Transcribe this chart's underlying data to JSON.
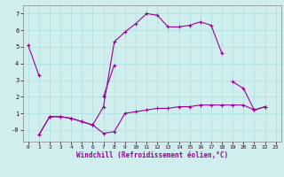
{
  "xlabel": "Windchill (Refroidissement éolien,°C)",
  "bg_color": "#d0eeee",
  "line_color": "#990099",
  "lines": [
    {
      "x": [
        0,
        1
      ],
      "y": [
        5.1,
        3.3
      ]
    },
    {
      "x": [
        1,
        2,
        3,
        4,
        5,
        6,
        7,
        8,
        9,
        10,
        11,
        12,
        13,
        14,
        15,
        16,
        17,
        18
      ],
      "y": [
        -0.3,
        0.8,
        0.8,
        0.7,
        0.5,
        0.3,
        1.4,
        5.3,
        5.9,
        6.4,
        7.0,
        6.9,
        6.2,
        6.2,
        6.3,
        6.5,
        6.3,
        4.6
      ]
    },
    {
      "x": [
        7,
        8
      ],
      "y": [
        2.0,
        3.9
      ]
    },
    {
      "x": [
        1,
        2,
        3,
        4,
        5,
        6,
        7,
        8,
        9,
        10,
        11,
        12,
        13,
        14,
        15,
        16,
        17,
        18,
        19,
        20,
        21,
        22
      ],
      "y": [
        -0.3,
        0.8,
        0.8,
        0.7,
        0.5,
        0.3,
        -0.2,
        -0.1,
        1.0,
        1.1,
        1.2,
        1.3,
        1.3,
        1.4,
        1.4,
        1.5,
        1.5,
        1.5,
        1.5,
        1.5,
        1.2,
        1.4
      ]
    },
    {
      "x": [
        19,
        20,
        21,
        22
      ],
      "y": [
        2.9,
        2.5,
        1.2,
        1.4
      ]
    }
  ],
  "xlim": [
    -0.5,
    23.5
  ],
  "ylim": [
    -0.7,
    7.5
  ],
  "yticks": [
    0,
    1,
    2,
    3,
    4,
    5,
    6,
    7
  ],
  "ytick_labels": [
    "-0",
    "1",
    "2",
    "3",
    "4",
    "5",
    "6",
    "7"
  ],
  "xticks": [
    0,
    1,
    2,
    3,
    4,
    5,
    6,
    7,
    8,
    9,
    10,
    11,
    12,
    13,
    14,
    15,
    16,
    17,
    18,
    19,
    20,
    21,
    22,
    23
  ],
  "grid_color": "#aadddd",
  "marker": "+"
}
